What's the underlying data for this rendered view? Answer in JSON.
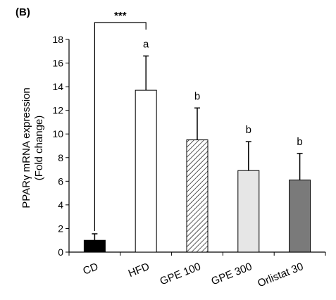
{
  "panel_label": "(B)",
  "chart_data": {
    "type": "bar",
    "title": "",
    "ylabel_line1": "PPARγ mRNA expression",
    "ylabel_line2": "(Fold change)",
    "xlabel": "",
    "ylim": [
      0,
      18
    ],
    "yticks": [
      0,
      2,
      4,
      6,
      8,
      10,
      12,
      14,
      16,
      18
    ],
    "grid": false,
    "categories": [
      "CD",
      "HFD",
      "GPE 100",
      "GPE 300",
      "Orlistat 30"
    ],
    "values": [
      1.0,
      13.7,
      9.5,
      6.9,
      6.1
    ],
    "error_upper": [
      0.55,
      2.9,
      2.7,
      2.45,
      2.25
    ],
    "letters": [
      "",
      "a",
      "b",
      "b",
      "b"
    ],
    "fills": [
      "#000000",
      "#ffffff",
      "hatch",
      "#e6e6e6",
      "#7a7a7a"
    ],
    "significance": {
      "label": "***",
      "from": "CD",
      "to": "HFD"
    }
  }
}
